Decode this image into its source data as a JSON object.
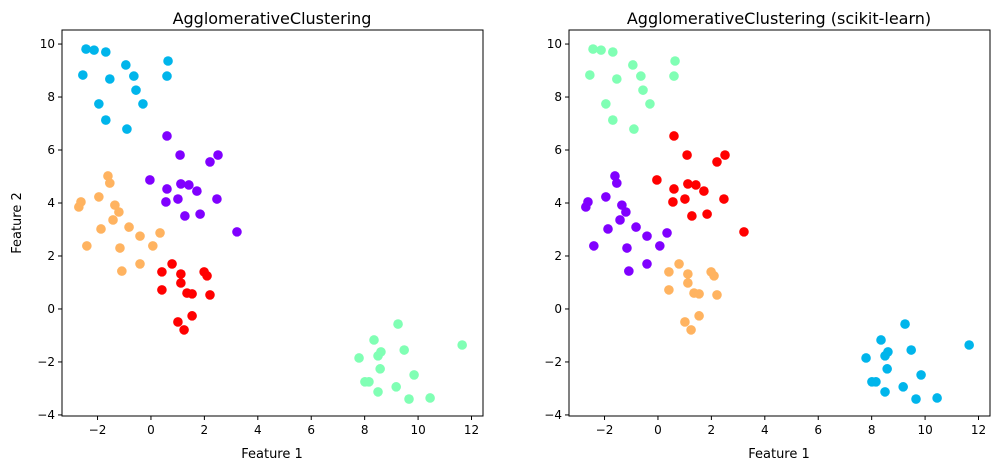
{
  "chart_data": [
    {
      "type": "scatter",
      "title": "AgglomerativeClustering",
      "xlabel": "Feature 1",
      "ylabel": "Feature 2",
      "xlim": [
        -3.33,
        12.43
      ],
      "ylim": [
        -4.04,
        10.53
      ],
      "xticks": [
        -2,
        0,
        2,
        4,
        6,
        8,
        10,
        12
      ],
      "yticks": [
        -4,
        -2,
        0,
        2,
        4,
        6,
        8,
        10
      ],
      "cluster_colors": [
        "#8000ff",
        "#00b5eb",
        "#80ffb4",
        "#ffb360",
        "#ff0000"
      ],
      "group_clusters": [
        1,
        0,
        3,
        4,
        2
      ]
    },
    {
      "type": "scatter",
      "title": "AgglomerativeClustering (scikit-learn)",
      "xlabel": "Feature 1",
      "ylabel": "",
      "xlim": [
        -3.33,
        12.43
      ],
      "ylim": [
        -4.04,
        10.53
      ],
      "xticks": [
        -2,
        0,
        2,
        4,
        6,
        8,
        10,
        12
      ],
      "yticks": [
        -4,
        -2,
        0,
        2,
        4,
        6,
        8,
        10
      ],
      "cluster_colors": [
        "#8000ff",
        "#00b5eb",
        "#80ffb4",
        "#ffb360",
        "#ff0000"
      ],
      "group_clusters": [
        2,
        4,
        0,
        3,
        1
      ]
    }
  ],
  "points": [
    [
      [
        -2.43,
        9.81
      ],
      [
        -2.13,
        9.77
      ],
      [
        -1.69,
        9.7
      ],
      [
        -0.94,
        9.21
      ],
      [
        0.64,
        9.36
      ],
      [
        -2.55,
        8.83
      ],
      [
        -1.54,
        8.68
      ],
      [
        -0.64,
        8.79
      ],
      [
        0.6,
        8.79
      ],
      [
        -0.56,
        8.26
      ],
      [
        -1.95,
        7.74
      ],
      [
        -0.3,
        7.74
      ],
      [
        -1.69,
        7.13
      ],
      [
        -0.9,
        6.79
      ]
    ],
    [
      [
        0.6,
        6.53
      ],
      [
        1.09,
        5.81
      ],
      [
        2.51,
        5.81
      ],
      [
        2.21,
        5.55
      ],
      [
        -0.04,
        4.87
      ],
      [
        1.12,
        4.72
      ],
      [
        1.42,
        4.68
      ],
      [
        1.72,
        4.45
      ],
      [
        0.6,
        4.53
      ],
      [
        1.01,
        4.15
      ],
      [
        2.47,
        4.15
      ],
      [
        0.56,
        4.04
      ],
      [
        1.27,
        3.51
      ],
      [
        1.84,
        3.58
      ],
      [
        3.22,
        2.91
      ]
    ],
    [
      [
        -1.61,
        5.02
      ],
      [
        -1.54,
        4.75
      ],
      [
        -2.62,
        4.04
      ],
      [
        -2.7,
        3.85
      ],
      [
        -1.95,
        4.23
      ],
      [
        -1.35,
        3.92
      ],
      [
        -1.2,
        3.66
      ],
      [
        -1.42,
        3.36
      ],
      [
        -0.82,
        3.09
      ],
      [
        -1.87,
        3.02
      ],
      [
        -0.41,
        2.75
      ],
      [
        0.34,
        2.87
      ],
      [
        -1.16,
        2.3
      ],
      [
        0.07,
        2.38
      ],
      [
        -2.4,
        2.38
      ],
      [
        -0.41,
        1.7
      ],
      [
        -1.09,
        1.43
      ]
    ],
    [
      [
        0.79,
        1.7
      ],
      [
        0.41,
        1.4
      ],
      [
        1.12,
        1.32
      ],
      [
        1.99,
        1.4
      ],
      [
        2.1,
        1.25
      ],
      [
        1.12,
        0.98
      ],
      [
        0.41,
        0.72
      ],
      [
        1.35,
        0.6
      ],
      [
        1.54,
        0.57
      ],
      [
        2.21,
        0.53
      ],
      [
        1.54,
        -0.26
      ],
      [
        1.01,
        -0.49
      ],
      [
        1.24,
        -0.79
      ]
    ],
    [
      [
        9.25,
        -0.57
      ],
      [
        8.35,
        -1.17
      ],
      [
        11.65,
        -1.36
      ],
      [
        9.48,
        -1.55
      ],
      [
        8.61,
        -1.62
      ],
      [
        7.79,
        -1.85
      ],
      [
        8.5,
        -1.77
      ],
      [
        8.58,
        -2.26
      ],
      [
        9.85,
        -2.49
      ],
      [
        8.01,
        -2.75
      ],
      [
        8.16,
        -2.75
      ],
      [
        9.18,
        -2.94
      ],
      [
        8.5,
        -3.13
      ],
      [
        9.66,
        -3.4
      ],
      [
        10.45,
        -3.36
      ]
    ]
  ]
}
